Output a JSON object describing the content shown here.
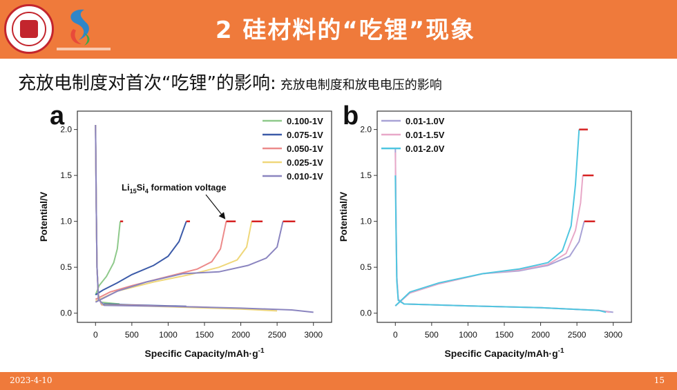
{
  "slide": {
    "title": "2 硅材料的“吃锂”现象",
    "subtitle_main": "充放电制度对首次“吃锂”的影响:",
    "subtitle_small": "充放电制度和放电电压的影响",
    "date": "2023-4-10",
    "page_number": "15"
  },
  "chart_data": [
    {
      "type": "line",
      "panel_label": "a",
      "xlabel": "Specific Capacity/mAh·g-1",
      "ylabel": "Potential/V",
      "xlim": [
        -250,
        3250
      ],
      "ylim": [
        -0.1,
        2.2
      ],
      "xticks": [
        0,
        500,
        1000,
        1500,
        2000,
        2500,
        3000
      ],
      "yticks": [
        0.0,
        0.5,
        1.0,
        1.5,
        2.0
      ],
      "legend_position": "top-right",
      "annotation": {
        "text": "Li15Si4 formation voltage",
        "base": "Li",
        "sub1": "15",
        "mid": "Si",
        "sub2": "4",
        "tail": " formation voltage",
        "arrow_to": [
          1800,
          1.0
        ]
      },
      "series": [
        {
          "name": "0.100-1V",
          "color": "#8ec98a",
          "discharge": [
            [
              0,
              2.05
            ],
            [
              10,
              1.2
            ],
            [
              20,
              0.5
            ],
            [
              40,
              0.2
            ],
            [
              70,
              0.12
            ],
            [
              200,
              0.11
            ],
            [
              330,
              0.1
            ]
          ],
          "charge": [
            [
              0,
              0.2
            ],
            [
              50,
              0.3
            ],
            [
              150,
              0.4
            ],
            [
              250,
              0.55
            ],
            [
              300,
              0.7
            ],
            [
              340,
              1.0
            ]
          ],
          "cutoff": [
            [
              340,
              1.0
            ],
            [
              380,
              1.0
            ]
          ]
        },
        {
          "name": "0.075-1V",
          "color": "#3b5aa8",
          "discharge": [
            [
              0,
              2.05
            ],
            [
              10,
              1.2
            ],
            [
              20,
              0.5
            ],
            [
              40,
              0.18
            ],
            [
              80,
              0.1
            ],
            [
              500,
              0.09
            ],
            [
              1000,
              0.08
            ],
            [
              1250,
              0.075
            ]
          ],
          "charge": [
            [
              0,
              0.2
            ],
            [
              100,
              0.25
            ],
            [
              300,
              0.33
            ],
            [
              500,
              0.42
            ],
            [
              800,
              0.52
            ],
            [
              1000,
              0.62
            ],
            [
              1150,
              0.78
            ],
            [
              1250,
              1.0
            ]
          ],
          "cutoff": [
            [
              1250,
              1.0
            ],
            [
              1300,
              1.0
            ]
          ]
        },
        {
          "name": "0.050-1V",
          "color": "#ec8a8a",
          "discharge": [
            [
              0,
              2.05
            ],
            [
              10,
              1.2
            ],
            [
              20,
              0.5
            ],
            [
              40,
              0.17
            ],
            [
              90,
              0.09
            ],
            [
              500,
              0.085
            ],
            [
              1000,
              0.075
            ],
            [
              1500,
              0.065
            ],
            [
              1850,
              0.05
            ]
          ],
          "charge": [
            [
              0,
              0.15
            ],
            [
              200,
              0.23
            ],
            [
              500,
              0.3
            ],
            [
              1000,
              0.4
            ],
            [
              1400,
              0.48
            ],
            [
              1600,
              0.56
            ],
            [
              1720,
              0.7
            ],
            [
              1800,
              1.0
            ]
          ],
          "cutoff": [
            [
              1800,
              1.0
            ],
            [
              1930,
              1.0
            ]
          ]
        },
        {
          "name": "0.025-1V",
          "color": "#efd77a",
          "discharge": [
            [
              0,
              2.05
            ],
            [
              10,
              1.2
            ],
            [
              20,
              0.5
            ],
            [
              40,
              0.16
            ],
            [
              100,
              0.09
            ],
            [
              1000,
              0.07
            ],
            [
              2000,
              0.045
            ],
            [
              2500,
              0.025
            ]
          ],
          "charge": [
            [
              0,
              0.13
            ],
            [
              300,
              0.24
            ],
            [
              800,
              0.34
            ],
            [
              1300,
              0.42
            ],
            [
              1700,
              0.5
            ],
            [
              1950,
              0.58
            ],
            [
              2080,
              0.72
            ],
            [
              2150,
              1.0
            ]
          ],
          "cutoff": [
            [
              2150,
              1.0
            ],
            [
              2300,
              1.0
            ]
          ]
        },
        {
          "name": "0.010-1V",
          "color": "#8a84bf",
          "discharge": [
            [
              0,
              2.05
            ],
            [
              10,
              1.2
            ],
            [
              20,
              0.5
            ],
            [
              40,
              0.15
            ],
            [
              120,
              0.085
            ],
            [
              1000,
              0.075
            ],
            [
              2000,
              0.055
            ],
            [
              2700,
              0.035
            ],
            [
              3000,
              0.01
            ]
          ],
          "charge": [
            [
              0,
              0.12
            ],
            [
              300,
              0.24
            ],
            [
              700,
              0.34
            ],
            [
              1200,
              0.43
            ],
            [
              1700,
              0.45
            ],
            [
              2100,
              0.52
            ],
            [
              2350,
              0.6
            ],
            [
              2500,
              0.72
            ],
            [
              2580,
              1.0
            ]
          ],
          "cutoff": [
            [
              2580,
              1.0
            ],
            [
              2750,
              1.0
            ]
          ]
        }
      ]
    },
    {
      "type": "line",
      "panel_label": "b",
      "xlabel": "Specific Capacity/mAh·g-1",
      "ylabel": "Potential/V",
      "xlim": [
        -250,
        3250
      ],
      "ylim": [
        -0.1,
        2.2
      ],
      "xticks": [
        0,
        500,
        1000,
        1500,
        2000,
        2500,
        3000
      ],
      "yticks": [
        0.0,
        0.5,
        1.0,
        1.5,
        2.0
      ],
      "legend_position": "top-left",
      "series": [
        {
          "name": "0.01-1.0V",
          "color": "#a8a2d6",
          "discharge": [
            [
              0,
              1.8
            ],
            [
              10,
              1.0
            ],
            [
              20,
              0.4
            ],
            [
              40,
              0.15
            ],
            [
              120,
              0.1
            ],
            [
              1000,
              0.08
            ],
            [
              2000,
              0.06
            ],
            [
              2800,
              0.03
            ],
            [
              3000,
              0.01
            ]
          ],
          "charge": [
            [
              0,
              0.08
            ],
            [
              200,
              0.22
            ],
            [
              600,
              0.32
            ],
            [
              1200,
              0.43
            ],
            [
              1700,
              0.46
            ],
            [
              2100,
              0.52
            ],
            [
              2400,
              0.62
            ],
            [
              2530,
              0.78
            ],
            [
              2600,
              1.0
            ]
          ],
          "cutoff": [
            [
              2600,
              1.0
            ],
            [
              2750,
              1.0
            ]
          ]
        },
        {
          "name": "0.01-1.5V",
          "color": "#e8a8c8",
          "discharge": [
            [
              0,
              1.75
            ],
            [
              10,
              1.0
            ],
            [
              20,
              0.4
            ],
            [
              40,
              0.15
            ],
            [
              120,
              0.1
            ],
            [
              1000,
              0.08
            ],
            [
              2000,
              0.06
            ],
            [
              2800,
              0.03
            ],
            [
              2950,
              0.01
            ]
          ],
          "charge": [
            [
              0,
              0.08
            ],
            [
              200,
              0.22
            ],
            [
              600,
              0.32
            ],
            [
              1200,
              0.43
            ],
            [
              1700,
              0.47
            ],
            [
              2100,
              0.53
            ],
            [
              2350,
              0.65
            ],
            [
              2480,
              0.9
            ],
            [
              2550,
              1.2
            ],
            [
              2580,
              1.5
            ]
          ],
          "cutoff": [
            [
              2580,
              1.5
            ],
            [
              2730,
              1.5
            ]
          ]
        },
        {
          "name": "0.01-2.0V",
          "color": "#4ec6e0",
          "discharge": [
            [
              0,
              1.5
            ],
            [
              10,
              0.9
            ],
            [
              20,
              0.35
            ],
            [
              40,
              0.14
            ],
            [
              120,
              0.1
            ],
            [
              1000,
              0.08
            ],
            [
              2000,
              0.06
            ],
            [
              2800,
              0.03
            ],
            [
              2900,
              0.01
            ]
          ],
          "charge": [
            [
              0,
              0.08
            ],
            [
              200,
              0.23
            ],
            [
              600,
              0.33
            ],
            [
              1200,
              0.43
            ],
            [
              1700,
              0.48
            ],
            [
              2100,
              0.55
            ],
            [
              2300,
              0.68
            ],
            [
              2420,
              0.95
            ],
            [
              2480,
              1.4
            ],
            [
              2530,
              2.0
            ]
          ],
          "cutoff": [
            [
              2530,
              2.0
            ],
            [
              2650,
              2.0
            ]
          ]
        }
      ]
    }
  ]
}
